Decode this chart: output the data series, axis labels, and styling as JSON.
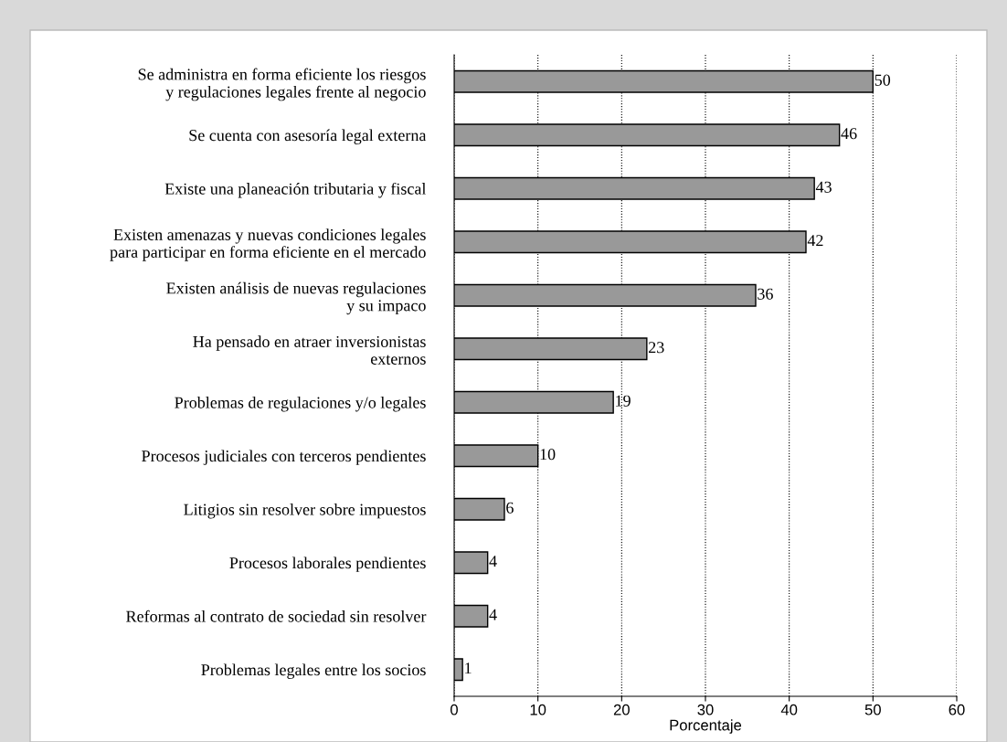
{
  "chart_data": {
    "type": "bar",
    "orientation": "horizontal",
    "xlabel": "Porcentaje",
    "categories": [
      "Se administra en forma eficiente los riesgos\ny regulaciones legales frente al negocio",
      "Se cuenta con asesoría legal externa",
      "Existe una planeación tributaria y fiscal",
      "Existen amenazas y nuevas condiciones legales\npara participar en forma eficiente en el mercado",
      "Existen análisis de nuevas regulaciones\ny su impaco",
      "Ha pensado en atraer inversionistas\nexternos",
      "Problemas de regulaciones y/o legales",
      "Procesos judiciales con terceros pendientes",
      "Litigios sin resolver sobre impuestos",
      "Procesos laborales pendientes",
      "Reformas al contrato de sociedad sin resolver",
      "Problemas legales entre los socios"
    ],
    "values": [
      50,
      46,
      43,
      42,
      36,
      23,
      19,
      10,
      6,
      4,
      4,
      1
    ],
    "color": "#999999",
    "xlim": [
      0,
      60
    ],
    "xticks": [
      0,
      10,
      20,
      30,
      40,
      50,
      60
    ],
    "grid": "x",
    "line_style": "dotted",
    "data_labels": true
  }
}
